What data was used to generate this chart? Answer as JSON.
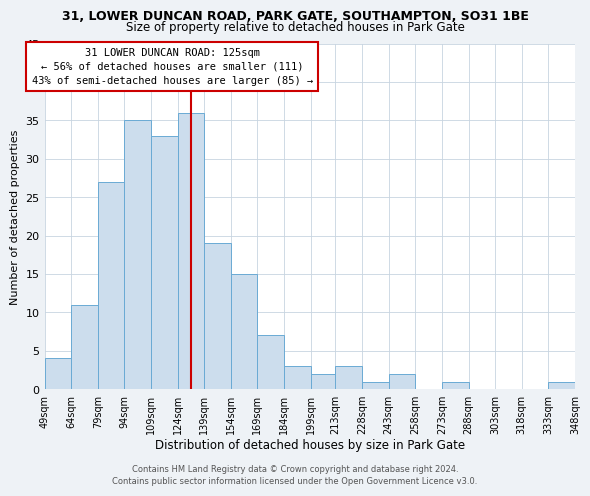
{
  "title": "31, LOWER DUNCAN ROAD, PARK GATE, SOUTHAMPTON, SO31 1BE",
  "subtitle": "Size of property relative to detached houses in Park Gate",
  "xlabel": "Distribution of detached houses by size in Park Gate",
  "ylabel": "Number of detached properties",
  "bar_color": "#ccdded",
  "bar_edge_color": "#6aaad4",
  "bar_left_edges": [
    49,
    64,
    79,
    94,
    109,
    124,
    139,
    154,
    169,
    184,
    199,
    213,
    228,
    243,
    258,
    273,
    288,
    303,
    318,
    333
  ],
  "bar_heights": [
    4,
    11,
    27,
    35,
    33,
    36,
    19,
    15,
    7,
    3,
    2,
    3,
    1,
    2,
    0,
    1,
    0,
    0,
    0,
    1
  ],
  "bin_width": 15,
  "x_tick_labels": [
    "49sqm",
    "64sqm",
    "79sqm",
    "94sqm",
    "109sqm",
    "124sqm",
    "139sqm",
    "154sqm",
    "169sqm",
    "184sqm",
    "199sqm",
    "213sqm",
    "228sqm",
    "243sqm",
    "258sqm",
    "273sqm",
    "288sqm",
    "303sqm",
    "318sqm",
    "333sqm",
    "348sqm"
  ],
  "ylim": [
    0,
    45
  ],
  "yticks": [
    0,
    5,
    10,
    15,
    20,
    25,
    30,
    35,
    40,
    45
  ],
  "vline_x": 131.5,
  "vline_color": "#cc0000",
  "annotation_title": "31 LOWER DUNCAN ROAD: 125sqm",
  "annotation_line1": "← 56% of detached houses are smaller (111)",
  "annotation_line2": "43% of semi-detached houses are larger (85) →",
  "annotation_box_color": "#ffffff",
  "annotation_box_edge": "#cc0000",
  "footer1": "Contains HM Land Registry data © Crown copyright and database right 2024.",
  "footer2": "Contains public sector information licensed under the Open Government Licence v3.0.",
  "background_color": "#eef2f6",
  "plot_bg_color": "#ffffff",
  "grid_color": "#c8d4e0"
}
